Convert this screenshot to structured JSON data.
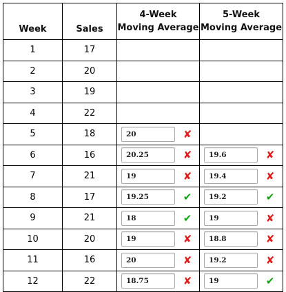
{
  "headers": {
    "week": "Week",
    "sales": "Sales",
    "ma4": [
      "4-Week",
      "Moving Average"
    ],
    "ma5": [
      "5-Week",
      "Moving Average"
    ]
  },
  "rows": [
    {
      "week": "1",
      "sales": "17",
      "ma4": null,
      "ma5": null
    },
    {
      "week": "2",
      "sales": "20",
      "ma4": null,
      "ma5": null
    },
    {
      "week": "3",
      "sales": "19",
      "ma4": null,
      "ma5": null
    },
    {
      "week": "4",
      "sales": "22",
      "ma4": null,
      "ma5": null
    },
    {
      "week": "5",
      "sales": "18",
      "ma4": {
        "value": "20",
        "mark": "wrong"
      },
      "ma5": null
    },
    {
      "week": "6",
      "sales": "16",
      "ma4": {
        "value": "20.25",
        "mark": "wrong"
      },
      "ma5": {
        "value": "19.6",
        "mark": "wrong"
      }
    },
    {
      "week": "7",
      "sales": "21",
      "ma4": {
        "value": "19",
        "mark": "wrong"
      },
      "ma5": {
        "value": "19.4",
        "mark": "wrong"
      }
    },
    {
      "week": "8",
      "sales": "17",
      "ma4": {
        "value": "19.25",
        "mark": "correct"
      },
      "ma5": {
        "value": "19.2",
        "mark": "correct"
      }
    },
    {
      "week": "9",
      "sales": "21",
      "ma4": {
        "value": "18",
        "mark": "correct"
      },
      "ma5": {
        "value": "19",
        "mark": "wrong"
      }
    },
    {
      "week": "10",
      "sales": "20",
      "ma4": {
        "value": "19",
        "mark": "wrong"
      },
      "ma5": {
        "value": "18.8",
        "mark": "wrong"
      }
    },
    {
      "week": "11",
      "sales": "16",
      "ma4": {
        "value": "20",
        "mark": "wrong"
      },
      "ma5": {
        "value": "19.2",
        "mark": "wrong"
      }
    },
    {
      "week": "12",
      "sales": "22",
      "ma4": {
        "value": "18.75",
        "mark": "wrong"
      },
      "ma5": {
        "value": "19",
        "mark": "correct"
      }
    }
  ],
  "marks": {
    "wrong": {
      "glyph": "✘",
      "icon": "red-x-icon",
      "color": "#e02020"
    },
    "correct": {
      "glyph": "✔",
      "icon": "green-check-icon",
      "color": "#13a313"
    }
  }
}
